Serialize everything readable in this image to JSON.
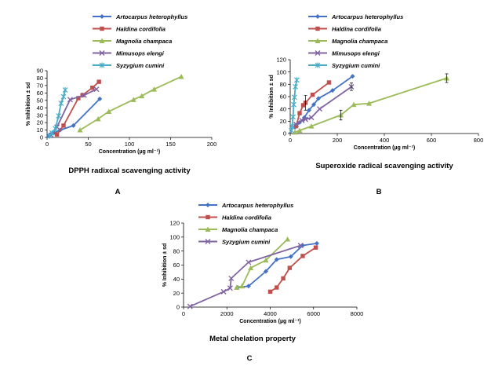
{
  "chart_data": [
    {
      "type": "line",
      "panel": "A",
      "caption": "DPPH radixcal scavenging activity",
      "xlabel": "Concentration (µg ml⁻¹)",
      "ylabel": "% Inhibition ± sd",
      "xlim": [
        0,
        200
      ],
      "ylim": [
        0,
        90
      ],
      "xticks": [
        0,
        50,
        100,
        150,
        200
      ],
      "yticks": [
        0,
        10,
        20,
        30,
        40,
        50,
        60,
        70,
        80,
        90
      ],
      "legend_position": "top-center",
      "series": [
        {
          "name": "Artocarpus heterophyllus",
          "color": "#4472C4",
          "marker": "diamond",
          "points": [
            [
              2,
              2
            ],
            [
              4,
              4
            ],
            [
              8,
              6
            ],
            [
              16,
              10
            ],
            [
              32,
              16
            ],
            [
              64,
              52
            ]
          ]
        },
        {
          "name": "Haldina cordifolia",
          "color": "#C0504D",
          "marker": "square",
          "points": [
            [
              12,
              4
            ],
            [
              20,
              16
            ],
            [
              38,
              53
            ],
            [
              43,
              57
            ],
            [
              55,
              67
            ],
            [
              63,
              75
            ]
          ]
        },
        {
          "name": "Magnolia champaca",
          "color": "#9BBB59",
          "marker": "triangle",
          "points": [
            [
              40,
              10
            ],
            [
              62,
              25
            ],
            [
              75,
              35
            ],
            [
              105,
              51
            ],
            [
              115,
              56
            ],
            [
              130,
              65
            ],
            [
              163,
              82
            ]
          ]
        },
        {
          "name": "Mimusops elengi",
          "color": "#8064A2",
          "marker": "x",
          "points": [
            [
              5,
              3
            ],
            [
              12,
              14
            ],
            [
              28,
              51
            ],
            [
              45,
              57
            ],
            [
              60,
              65
            ]
          ]
        },
        {
          "name": "Syzygium cumini",
          "color": "#4BACC6",
          "marker": "star",
          "points": [
            [
              3,
              2
            ],
            [
              6,
              6
            ],
            [
              10,
              12
            ],
            [
              14,
              29
            ],
            [
              17,
              46
            ],
            [
              20,
              55
            ],
            [
              22,
              64
            ]
          ]
        }
      ]
    },
    {
      "type": "line",
      "panel": "B",
      "caption": "Superoxide radical scavenging activity",
      "xlabel": "Concentration (µg ml⁻¹)",
      "ylabel": "% Inhibition ± sd",
      "xlim": [
        0,
        800
      ],
      "ylim": [
        0,
        120
      ],
      "xticks": [
        0,
        200,
        400,
        600,
        800
      ],
      "yticks": [
        0,
        20,
        40,
        60,
        80,
        100,
        120
      ],
      "legend_position": "top-center",
      "series": [
        {
          "name": "Artocarpus heterophyllus",
          "color": "#4472C4",
          "marker": "diamond",
          "points": [
            [
              20,
              10
            ],
            [
              40,
              18
            ],
            [
              60,
              26
            ],
            [
              80,
              38
            ],
            [
              100,
              47
            ],
            [
              120,
              57
            ],
            [
              180,
              70
            ],
            [
              265,
              93
            ]
          ]
        },
        {
          "name": "Haldina cordifolia",
          "color": "#C0504D",
          "marker": "square",
          "points": [
            [
              25,
              12
            ],
            [
              40,
              33
            ],
            [
              55,
              46
            ],
            [
              65,
              50
            ],
            [
              95,
              63
            ],
            [
              165,
              83
            ]
          ]
        },
        {
          "name": "Magnolia champaca",
          "color": "#9BBB59",
          "marker": "triangle",
          "points": [
            [
              20,
              2
            ],
            [
              40,
              5
            ],
            [
              90,
              12
            ],
            [
              215,
              30
            ],
            [
              270,
              47
            ],
            [
              335,
              49
            ],
            [
              665,
              90
            ]
          ]
        },
        {
          "name": "Mimusops elengi",
          "color": "#8064A2",
          "marker": "x",
          "points": [
            [
              25,
              15
            ],
            [
              50,
              21
            ],
            [
              65,
              23
            ],
            [
              90,
              26
            ],
            [
              125,
              40
            ],
            [
              260,
              76
            ]
          ]
        },
        {
          "name": "Syzygium cumini",
          "color": "#4BACC6",
          "marker": "star",
          "points": [
            [
              5,
              5
            ],
            [
              8,
              12
            ],
            [
              12,
              27
            ],
            [
              15,
              47
            ],
            [
              18,
              59
            ],
            [
              22,
              76
            ],
            [
              28,
              87
            ]
          ]
        }
      ]
    },
    {
      "type": "line",
      "panel": "C",
      "caption": "Metal chelation property",
      "xlabel": "Concentration (µg ml⁻¹)",
      "ylabel": "% Inhibition ± sd",
      "xlim": [
        0,
        8000
      ],
      "ylim": [
        0,
        120
      ],
      "xticks": [
        0,
        2000,
        4000,
        6000,
        8000
      ],
      "yticks": [
        0,
        20,
        40,
        60,
        80,
        100,
        120
      ],
      "legend_position": "top-right",
      "series": [
        {
          "name": "Artocarpus heterophyllus",
          "color": "#4472C4",
          "marker": "diamond",
          "points": [
            [
              2500,
              28
            ],
            [
              3000,
              30
            ],
            [
              3800,
              51
            ],
            [
              4300,
              68
            ],
            [
              4950,
              72
            ],
            [
              5500,
              88
            ],
            [
              6150,
              91
            ]
          ]
        },
        {
          "name": "Haldina cordifolia",
          "color": "#C0504D",
          "marker": "square",
          "points": [
            [
              4000,
              22
            ],
            [
              4300,
              28
            ],
            [
              4600,
              41
            ],
            [
              4900,
              56
            ],
            [
              5500,
              73
            ],
            [
              6100,
              85
            ]
          ]
        },
        {
          "name": "Magnolia champaca",
          "color": "#9BBB59",
          "marker": "triangle",
          "points": [
            [
              2450,
              28
            ],
            [
              2700,
              30
            ],
            [
              3100,
              56
            ],
            [
              3800,
              67
            ],
            [
              4800,
              97
            ]
          ]
        },
        {
          "name": "Syzygium cumini",
          "color": "#8064A2",
          "marker": "x",
          "points": [
            [
              300,
              1
            ],
            [
              1850,
              22
            ],
            [
              2150,
              27
            ],
            [
              2200,
              41
            ],
            [
              3000,
              64
            ],
            [
              5400,
              88
            ]
          ]
        }
      ]
    }
  ]
}
